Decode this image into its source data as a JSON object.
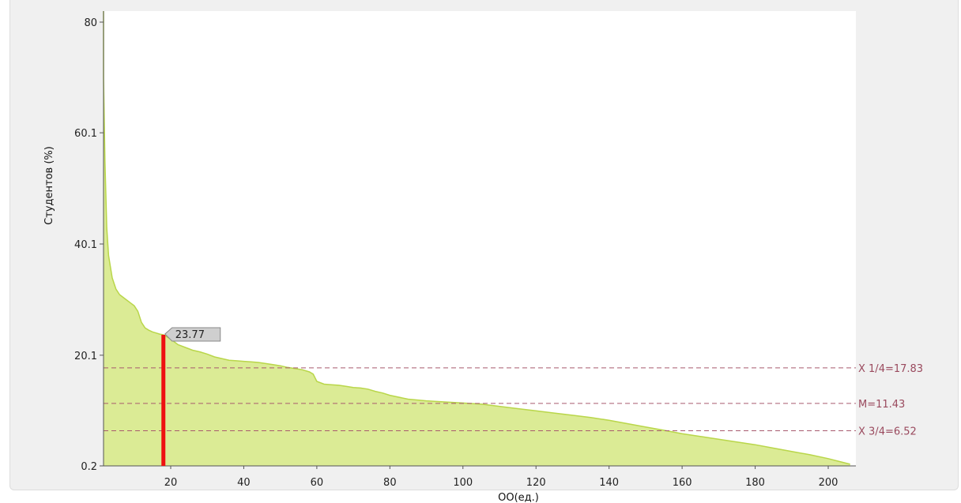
{
  "chart_data": {
    "type": "area",
    "title": "",
    "xlabel": "ОО(ед.)",
    "ylabel": "Студентов (%)",
    "xlim": [
      1,
      206
    ],
    "ylim": [
      0.2,
      82
    ],
    "x_ticks": [
      20,
      40,
      60,
      80,
      100,
      120,
      140,
      160,
      180,
      200
    ],
    "y_ticks": [
      0.2,
      20.1,
      40.1,
      60.1,
      80
    ],
    "grid": false,
    "legend": "none",
    "colors": {
      "fill": "#dbeb95",
      "stroke": "#b9d64a",
      "marker": "#ee1111",
      "reference": "#a85a6e",
      "plot_background": "#ffffff"
    },
    "series": [
      {
        "x": [
          1,
          1.5,
          2,
          2.5,
          3,
          4,
          5,
          6,
          7,
          8,
          9,
          10,
          11,
          12,
          13,
          14,
          15,
          16,
          17,
          18,
          20,
          22,
          24,
          26,
          28,
          30,
          32,
          34,
          36,
          38,
          40,
          42,
          44,
          46,
          48,
          50,
          52,
          54,
          56,
          58,
          59,
          60,
          62,
          64,
          66,
          68,
          70,
          72,
          74,
          76,
          78,
          80,
          85,
          90,
          95,
          100,
          105,
          110,
          115,
          120,
          125,
          130,
          135,
          140,
          145,
          150,
          155,
          160,
          165,
          170,
          175,
          180,
          185,
          190,
          195,
          200,
          203,
          206
        ],
        "y": [
          82,
          70,
          55,
          43,
          38,
          34,
          32,
          31,
          30.5,
          30,
          29.5,
          29,
          28,
          26,
          25,
          24.6,
          24.3,
          24.1,
          23.9,
          23.77,
          23,
          22,
          21.5,
          21,
          20.7,
          20.3,
          19.8,
          19.5,
          19.2,
          19.1,
          19,
          18.9,
          18.8,
          18.6,
          18.4,
          18.2,
          17.9,
          17.7,
          17.5,
          17.1,
          16.7,
          15.4,
          14.9,
          14.8,
          14.7,
          14.5,
          14.3,
          14.2,
          14,
          13.6,
          13.3,
          12.9,
          12.2,
          11.9,
          11.7,
          11.5,
          11.3,
          10.9,
          10.5,
          10.1,
          9.7,
          9.3,
          8.9,
          8.4,
          7.8,
          7.2,
          6.6,
          6,
          5.5,
          5,
          4.5,
          4,
          3.4,
          2.8,
          2.2,
          1.5,
          1.0,
          0.5
        ]
      }
    ],
    "reference_lines": [
      {
        "label": "X 1/4=17.83",
        "y": 17.83
      },
      {
        "label": "M=11.43",
        "y": 11.43
      },
      {
        "label": "X 3/4=6.52",
        "y": 6.52
      }
    ],
    "marker": {
      "x": 18,
      "y": 23.77,
      "label": "23.77"
    }
  }
}
